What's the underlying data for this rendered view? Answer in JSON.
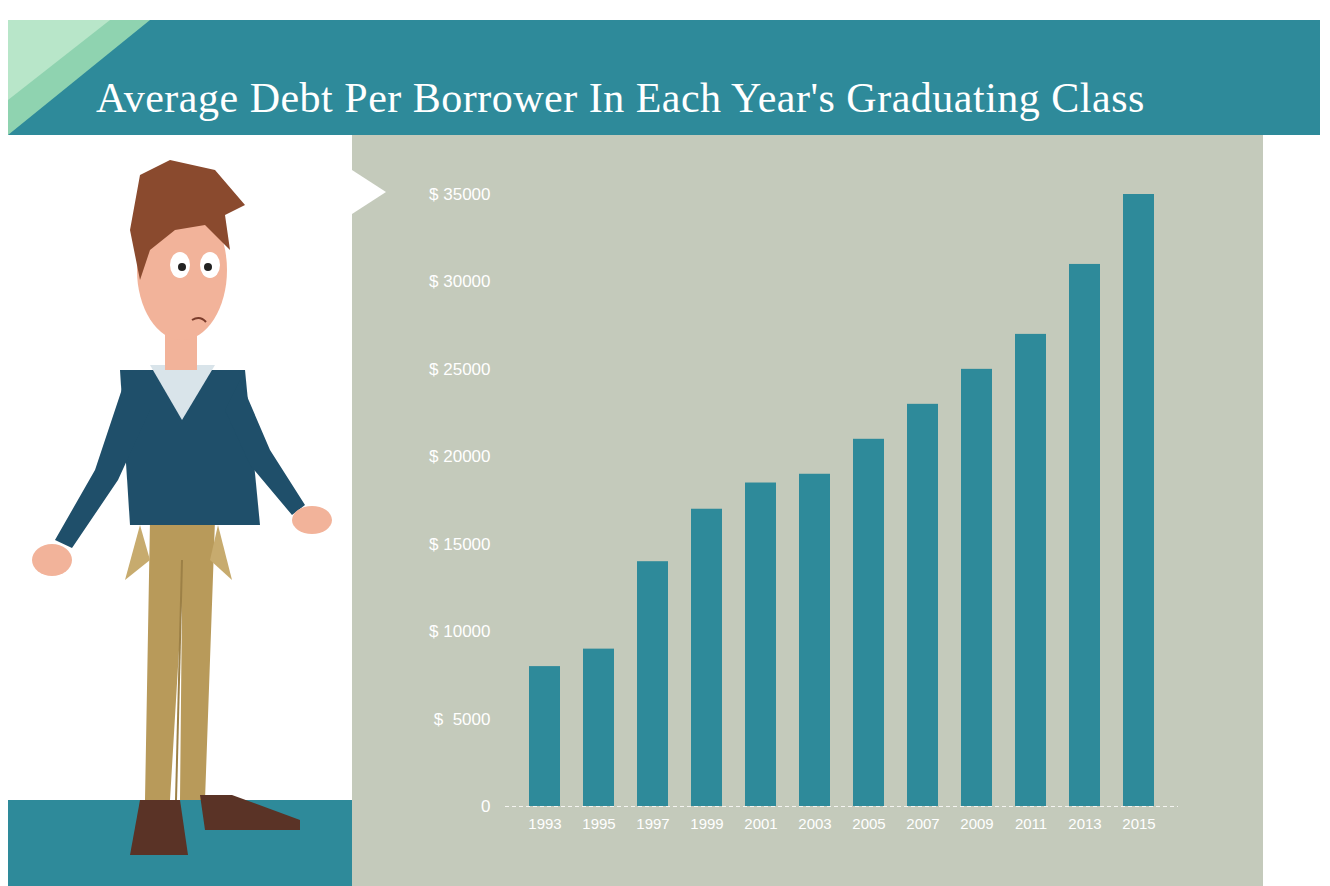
{
  "chart_data": {
    "type": "bar",
    "title": "Average Debt Per Borrower In Each Year's Graduating Class",
    "categories": [
      "1993",
      "1995",
      "1997",
      "1999",
      "2001",
      "2003",
      "2005",
      "2007",
      "2009",
      "2011",
      "2013",
      "2015"
    ],
    "values": [
      8000,
      9000,
      14000,
      17000,
      18500,
      19000,
      21000,
      23000,
      25000,
      27000,
      31000,
      35000
    ],
    "color": "#2e8a9a",
    "ylim": [
      0,
      35000
    ],
    "yticks": [
      0,
      {
        "value": 5000,
        "label": "$  5000"
      },
      {
        "value": 10000,
        "label": "$ 10000"
      },
      {
        "value": 15000,
        "label": "$ 15000"
      },
      {
        "value": 20000,
        "label": "$ 20000"
      },
      {
        "value": 25000,
        "label": "$ 25000"
      },
      {
        "value": 30000,
        "label": "$ 30000"
      },
      {
        "value": 35000,
        "label": "$ 35000"
      }
    ],
    "grid": false
  }
}
